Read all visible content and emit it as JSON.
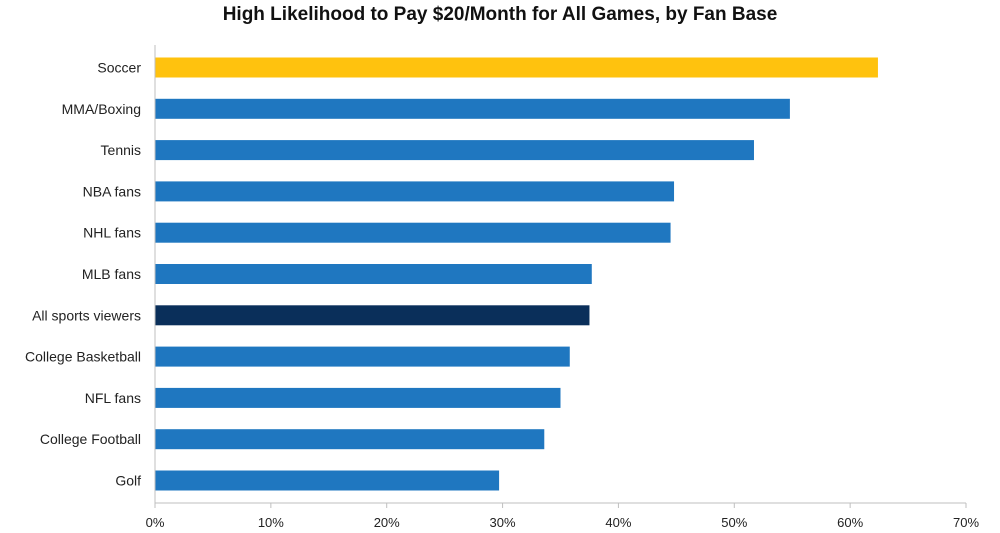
{
  "chart_data": {
    "type": "bar",
    "orientation": "horizontal",
    "title": "High Likelihood to Pay $20/Month for All Games, by Fan Base",
    "xlabel": "",
    "ylabel": "",
    "categories": [
      "Soccer",
      "MMA/Boxing",
      "Tennis",
      "NBA fans",
      "NHL fans",
      "MLB fans",
      "All sports viewers",
      "College Basketball",
      "NFL fans",
      "College Football",
      "Golf"
    ],
    "values": [
      62.4,
      54.8,
      51.7,
      44.8,
      44.5,
      37.7,
      37.5,
      35.8,
      35.0,
      33.6,
      29.7
    ],
    "bar_colors": [
      "#FFC20E",
      "#1F77C0",
      "#1F77C0",
      "#1F77C0",
      "#1F77C0",
      "#1F77C0",
      "#0A2F5A",
      "#1F77C0",
      "#1F77C0",
      "#1F77C0",
      "#1F77C0"
    ],
    "xlim": [
      0,
      70
    ],
    "x_ticks": [
      "0%",
      "10%",
      "20%",
      "30%",
      "40%",
      "50%",
      "60%",
      "70%"
    ],
    "x_tick_values": [
      0,
      10,
      20,
      30,
      40,
      50,
      60,
      70
    ],
    "grid": false,
    "legend": "none"
  }
}
